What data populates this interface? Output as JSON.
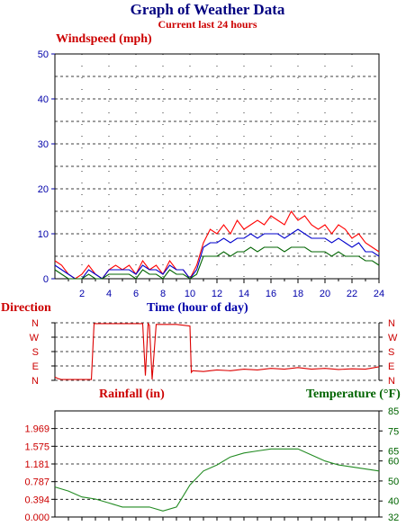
{
  "title": "Graph of Weather Data",
  "subtitle": "Current last 24 hours",
  "colors": {
    "wind_red": "#ff0000",
    "wind_blue": "#0000cc",
    "wind_green": "#006400",
    "direction": "#dd0000",
    "temperature": "#228B22",
    "axis_blue": "#0000aa",
    "axis_red": "#cc0000",
    "axis_green": "#006400"
  },
  "chart_data": [
    {
      "type": "line",
      "title": "Windspeed (mph)",
      "xlabel": "Time (hour of day)",
      "ylabel": "Windspeed (mph)",
      "xlim": [
        0,
        24
      ],
      "ylim": [
        0,
        50
      ],
      "x_ticks": [
        "2",
        "4",
        "6",
        "8",
        "10",
        "12",
        "14",
        "16",
        "18",
        "20",
        "22",
        "24"
      ],
      "y_ticks": [
        "0",
        "10",
        "20",
        "30",
        "40",
        "50"
      ],
      "grid": true,
      "x": [
        0,
        0.5,
        1,
        1.5,
        2,
        2.5,
        3,
        3.5,
        4,
        4.5,
        5,
        5.5,
        6,
        6.5,
        7,
        7.5,
        8,
        8.5,
        9,
        9.5,
        10,
        10.5,
        11,
        11.5,
        12,
        12.5,
        13,
        13.5,
        14,
        14.5,
        15,
        15.5,
        16,
        16.5,
        17,
        17.5,
        18,
        18.5,
        19,
        19.5,
        20,
        20.5,
        21,
        21.5,
        22,
        22.5,
        23,
        23.5,
        24
      ],
      "series": [
        {
          "color": "#ff0000",
          "values": [
            4,
            3,
            1,
            0,
            1,
            3,
            1,
            0,
            2,
            3,
            2,
            3,
            1,
            4,
            2,
            3,
            1,
            4,
            2,
            2,
            0,
            3,
            8,
            11,
            10,
            12,
            10,
            13,
            11,
            12,
            13,
            12,
            14,
            13,
            12,
            15,
            13,
            14,
            12,
            11,
            12,
            10,
            12,
            11,
            9,
            10,
            8,
            7,
            6
          ]
        },
        {
          "color": "#0000cc",
          "values": [
            3,
            2,
            1,
            0,
            0,
            2,
            1,
            0,
            2,
            2,
            2,
            2,
            1,
            3,
            2,
            2,
            1,
            3,
            2,
            2,
            0,
            2,
            7,
            8,
            8,
            9,
            8,
            9,
            9,
            10,
            9,
            10,
            10,
            10,
            9,
            10,
            11,
            10,
            9,
            9,
            9,
            8,
            9,
            8,
            7,
            8,
            6,
            6,
            5
          ]
        },
        {
          "color": "#006400",
          "values": [
            2,
            1,
            0,
            0,
            0,
            1,
            0,
            0,
            1,
            1,
            1,
            1,
            0,
            2,
            1,
            1,
            0,
            2,
            1,
            1,
            0,
            1,
            5,
            5,
            5,
            6,
            5,
            6,
            6,
            7,
            6,
            7,
            7,
            7,
            6,
            7,
            7,
            7,
            6,
            6,
            6,
            5,
            6,
            5,
            5,
            5,
            4,
            4,
            3
          ]
        }
      ]
    },
    {
      "type": "line",
      "title": "Direction",
      "y_ticks": [
        "N",
        "W",
        "S",
        "E",
        "N"
      ],
      "ylim": [
        0,
        360
      ],
      "grid": true,
      "x": [
        0,
        0.25,
        0.5,
        2.7,
        2.9,
        6.5,
        6.7,
        6.9,
        7,
        7.2,
        7.5,
        9,
        9.5,
        10,
        10.1,
        10.2,
        11,
        12,
        13,
        14,
        15,
        16,
        17,
        18,
        19,
        20,
        21,
        22,
        23,
        24
      ],
      "series": [
        {
          "color": "#dd0000",
          "values": [
            20,
            10,
            5,
            5,
            355,
            355,
            30,
            355,
            345,
            5,
            350,
            350,
            345,
            340,
            50,
            60,
            55,
            65,
            60,
            70,
            65,
            75,
            70,
            80,
            70,
            75,
            68,
            72,
            70,
            85
          ]
        }
      ]
    },
    {
      "type": "line",
      "title": "Rainfall (in)",
      "ylim": [
        0,
        2.362
      ],
      "y_ticks": [
        "0.000",
        "0.394",
        "0.787",
        "1.181",
        "1.575",
        "1.969"
      ],
      "y2_label": "Temperature (°F)",
      "y2lim": [
        32,
        85
      ],
      "y2_ticks": [
        "32",
        "40",
        "50",
        "60",
        "65",
        "75",
        "85"
      ],
      "grid": true,
      "x": [
        0,
        1,
        2,
        3,
        4,
        5,
        6,
        7,
        8,
        9,
        10,
        11,
        12,
        13,
        14,
        15,
        16,
        17,
        18,
        19,
        20,
        21,
        22,
        23,
        24
      ],
      "series": [
        {
          "name": "Temperature (°F)",
          "color": "#228B22",
          "values": [
            47,
            45,
            42,
            41,
            39,
            37,
            37,
            37,
            35,
            37,
            48,
            55,
            58,
            62,
            64,
            65,
            66,
            66,
            66,
            63,
            60,
            58,
            57,
            56,
            55
          ]
        }
      ]
    }
  ]
}
